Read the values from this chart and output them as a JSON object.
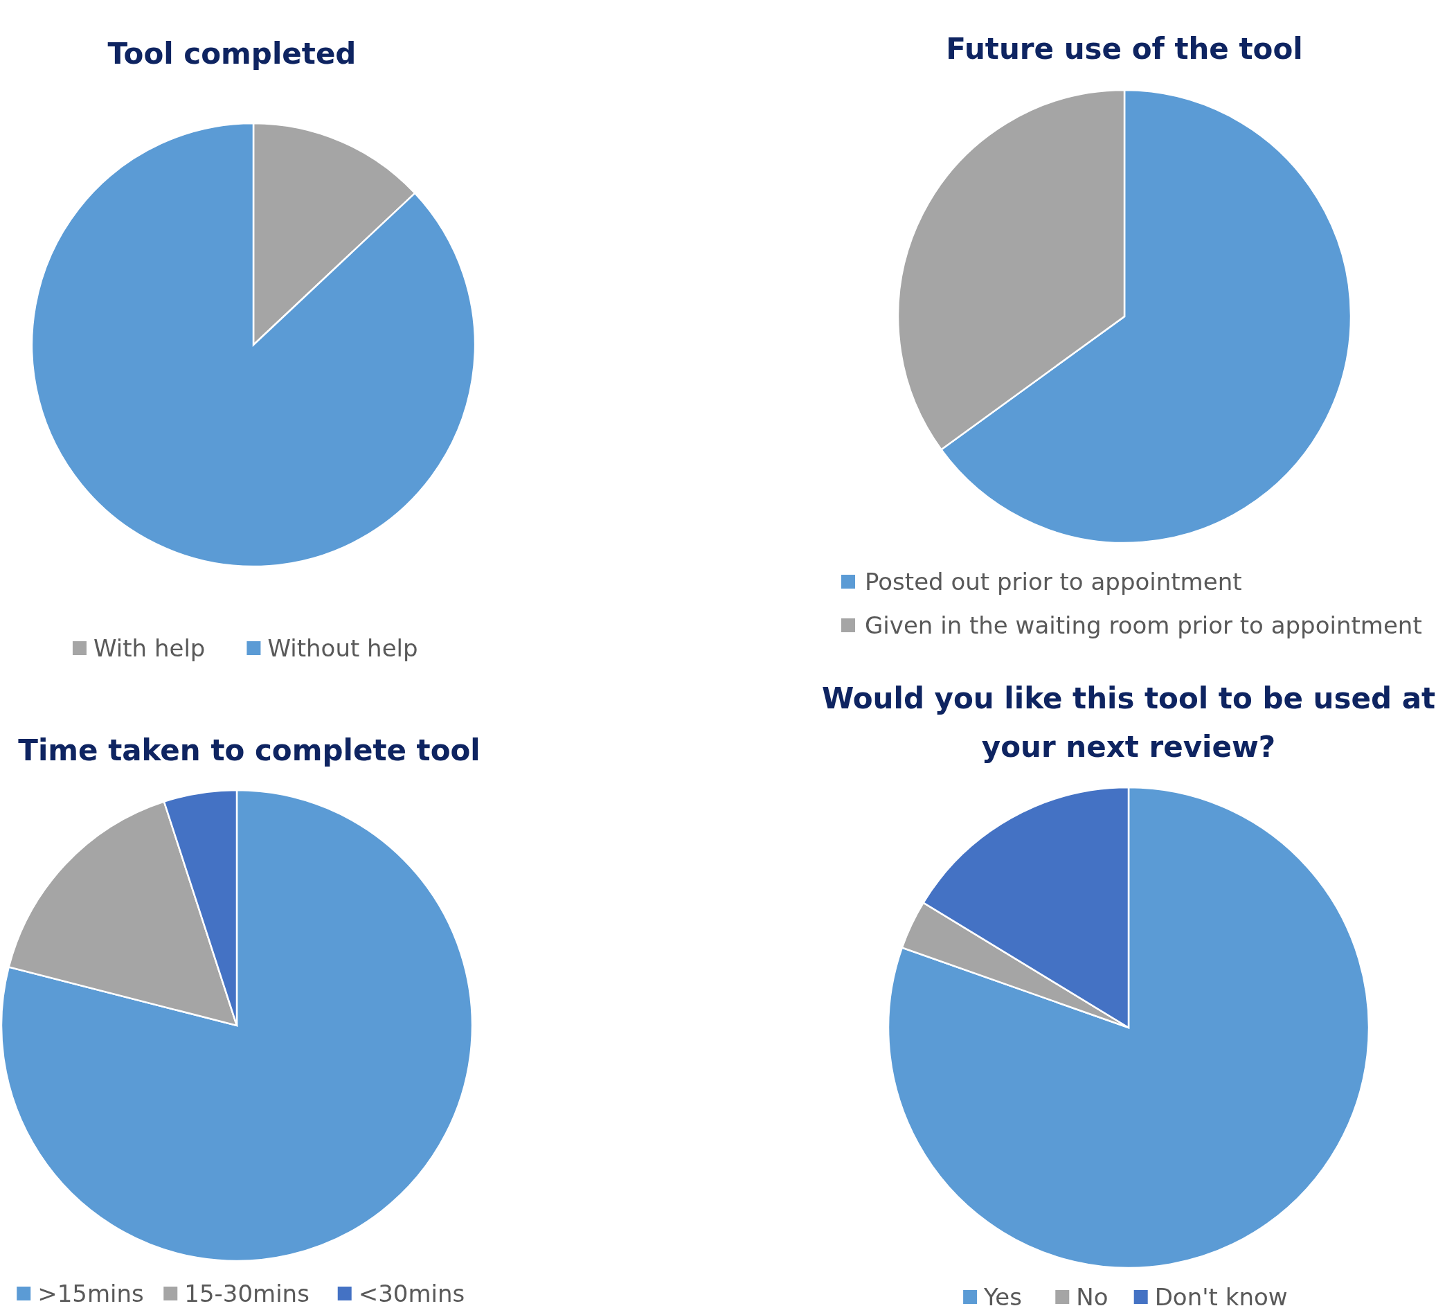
{
  "chart_data": [
    {
      "type": "pie",
      "title": "Tool completed",
      "categories": [
        "With help",
        "Without help"
      ],
      "values": [
        13,
        87
      ],
      "colors": [
        "#a5a5a5",
        "#5b9bd5"
      ],
      "legend": "bottom"
    },
    {
      "type": "pie",
      "title": "Future use of the tool",
      "categories": [
        "Posted out prior to appointment",
        "Given in the waiting room prior to appointment"
      ],
      "values": [
        65,
        35
      ],
      "colors": [
        "#5b9bd5",
        "#a5a5a5"
      ],
      "legend": "bottom"
    },
    {
      "type": "pie",
      "title": "Time taken to complete tool",
      "categories": [
        ">15mins",
        "15-30mins",
        "<30mins"
      ],
      "values": [
        79,
        16,
        5
      ],
      "colors": [
        "#5b9bd5",
        "#a5a5a5",
        "#4472c4"
      ],
      "legend": "bottom"
    },
    {
      "type": "pie",
      "title": "Would you like this tool to be used at your next review?",
      "categories": [
        "Yes",
        "No",
        "Don't know"
      ],
      "values": [
        80.4,
        3.3,
        16.3
      ],
      "colors": [
        "#5b9bd5",
        "#a5a5a5",
        "#4472c4"
      ],
      "legend": "bottom"
    }
  ]
}
